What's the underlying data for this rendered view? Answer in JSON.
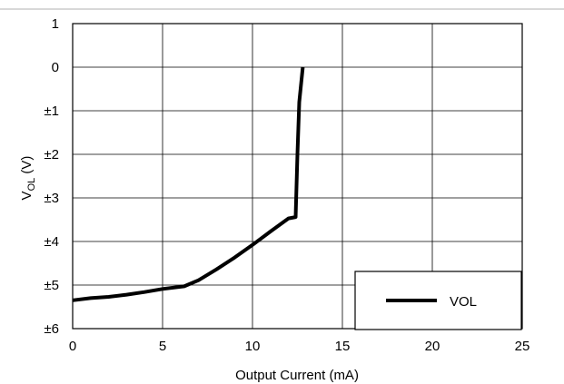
{
  "chart_data": {
    "type": "line",
    "xlabel": "Output Current (mA)",
    "ylabel": {
      "main": "V",
      "sub": "OL",
      "unit": " (V)"
    },
    "xlim": [
      0,
      25
    ],
    "ylim": [
      -6,
      1
    ],
    "x_ticks": [
      {
        "value": 0,
        "label": "0"
      },
      {
        "value": 5,
        "label": "5"
      },
      {
        "value": 10,
        "label": "10"
      },
      {
        "value": 15,
        "label": "15"
      },
      {
        "value": 20,
        "label": "20"
      },
      {
        "value": 25,
        "label": "25"
      }
    ],
    "y_ticks": [
      {
        "value": 1,
        "label": "1"
      },
      {
        "value": 0,
        "label": "0"
      },
      {
        "value": -1,
        "label": "±1"
      },
      {
        "value": -2,
        "label": "±2"
      },
      {
        "value": -3,
        "label": "±3"
      },
      {
        "value": -4,
        "label": "±4"
      },
      {
        "value": -5,
        "label": "±5"
      },
      {
        "value": -6,
        "label": "±6"
      }
    ],
    "grid": true,
    "legend_position": "bottom-right",
    "series": [
      {
        "name": "VOL",
        "color": "#000000",
        "x": [
          0,
          1,
          2,
          3,
          4,
          5,
          6.2,
          7,
          8,
          9,
          10,
          11,
          12,
          12.4,
          12.5,
          12.6,
          12.8
        ],
        "y": [
          -5.35,
          -5.3,
          -5.27,
          -5.22,
          -5.16,
          -5.09,
          -5.03,
          -4.89,
          -4.64,
          -4.37,
          -4.08,
          -3.77,
          -3.47,
          -3.44,
          -2.0,
          -0.8,
          0.0
        ]
      }
    ]
  }
}
